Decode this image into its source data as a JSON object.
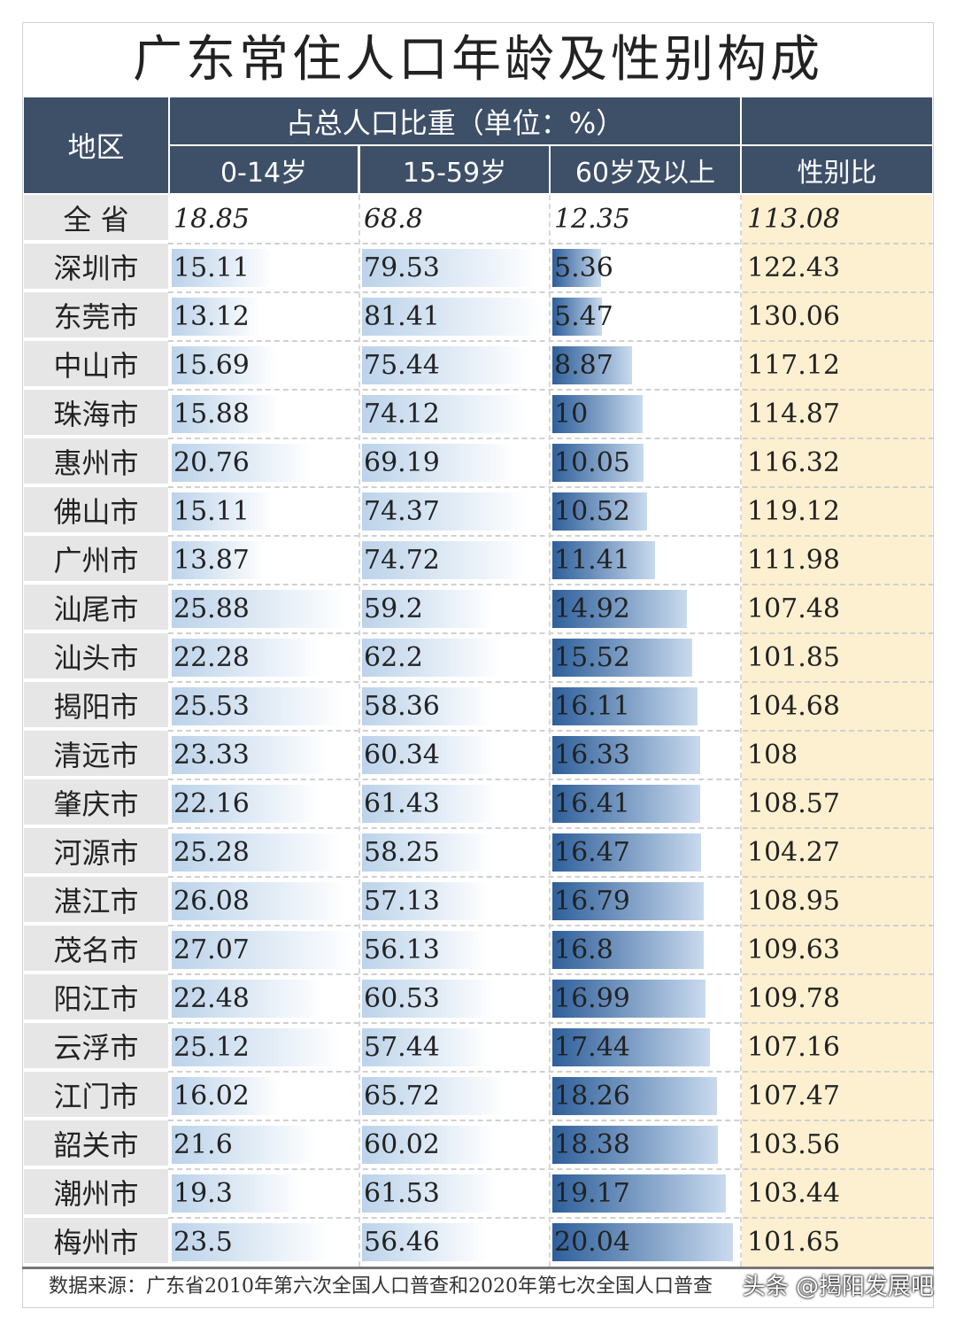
{
  "title": "广东常住人口年龄及性别构成",
  "header": {
    "region": "地区",
    "group": "占总人口比重（单位：%）",
    "col1": "0-14岁",
    "col2": "15-59岁",
    "col3": "60岁及以上",
    "col4": "性别比"
  },
  "chart_data": {
    "type": "table",
    "title": "广东常住人口年龄及性别构成",
    "columns": [
      "地区",
      "0-14岁",
      "15-59岁",
      "60岁及以上",
      "性别比"
    ],
    "rows": [
      [
        "全 省",
        "18.85",
        "68.8",
        "12.35",
        "113.08"
      ],
      [
        "深圳市",
        "15.11",
        "79.53",
        "5.36",
        "122.43"
      ],
      [
        "东莞市",
        "13.12",
        "81.41",
        "5.47",
        "130.06"
      ],
      [
        "中山市",
        "15.69",
        "75.44",
        "8.87",
        "117.12"
      ],
      [
        "珠海市",
        "15.88",
        "74.12",
        "10",
        "114.87"
      ],
      [
        "惠州市",
        "20.76",
        "69.19",
        "10.05",
        "116.32"
      ],
      [
        "佛山市",
        "15.11",
        "74.37",
        "10.52",
        "119.12"
      ],
      [
        "广州市",
        "13.87",
        "74.72",
        "11.41",
        "111.98"
      ],
      [
        "汕尾市",
        "25.88",
        "59.2",
        "14.92",
        "107.48"
      ],
      [
        "汕头市",
        "22.28",
        "62.2",
        "15.52",
        "101.85"
      ],
      [
        "揭阳市",
        "25.53",
        "58.36",
        "16.11",
        "104.68"
      ],
      [
        "清远市",
        "23.33",
        "60.34",
        "16.33",
        "108"
      ],
      [
        "肇庆市",
        "22.16",
        "61.43",
        "16.41",
        "108.57"
      ],
      [
        "河源市",
        "25.28",
        "58.25",
        "16.47",
        "104.27"
      ],
      [
        "湛江市",
        "26.08",
        "57.13",
        "16.79",
        "108.95"
      ],
      [
        "茂名市",
        "27.07",
        "56.13",
        "16.8",
        "109.63"
      ],
      [
        "阳江市",
        "22.48",
        "60.53",
        "16.99",
        "109.78"
      ],
      [
        "云浮市",
        "25.12",
        "57.44",
        "17.44",
        "107.16"
      ],
      [
        "江门市",
        "16.02",
        "65.72",
        "18.26",
        "107.47"
      ],
      [
        "韶关市",
        "21.6",
        "60.02",
        "18.38",
        "103.56"
      ],
      [
        "潮州市",
        "19.3",
        "61.53",
        "19.17",
        "103.44"
      ],
      [
        "梅州市",
        "23.5",
        "56.46",
        "20.04",
        "101.65"
      ]
    ]
  },
  "colors": {
    "header": "#3e4f68",
    "ratio_bg": "#fdf0d0",
    "bar_light": "#bcd3ea",
    "bar_dark": "#2e5f9a",
    "region_bg": "#e6e6e6"
  },
  "footer": "数据来源：广东省2010年第六次全国人口普查和2020年第七次全国人口普查",
  "watermark": "头条 @揭阳发展吧"
}
